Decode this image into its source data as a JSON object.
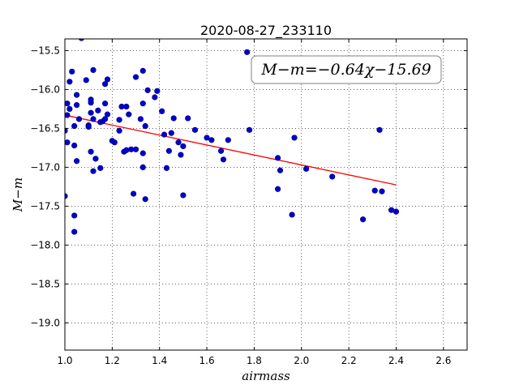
{
  "chart_data": {
    "type": "scatter",
    "title": "2020-08-27_233110",
    "xlabel": "airmass",
    "ylabel": "M−m",
    "xlim": [
      1.0,
      2.7
    ],
    "ylim": [
      -19.35,
      -15.35
    ],
    "y_inverted": false,
    "grid": true,
    "xticks": [
      "1.0",
      "1.2",
      "1.4",
      "1.6",
      "1.8",
      "2.0",
      "2.2",
      "2.4",
      "2.6"
    ],
    "xtick_values": [
      1.0,
      1.2,
      1.4,
      1.6,
      1.8,
      2.0,
      2.2,
      2.4,
      2.6
    ],
    "yticks": [
      "−15.5",
      "−16.0",
      "−16.5",
      "−17.0",
      "−17.5",
      "−18.0",
      "−18.5",
      "−19.0"
    ],
    "ytick_values": [
      -15.5,
      -16.0,
      -16.5,
      -17.0,
      -17.5,
      -18.0,
      -18.5,
      -19.0
    ],
    "annotation": "M−m=−0.64χ−15.69",
    "colors": {
      "points": "#0000cc",
      "point_edge": "#000080",
      "fit": "#ff0000"
    },
    "fit_line": {
      "slope": -0.64,
      "intercept": -15.69,
      "x_range": [
        1.02,
        2.4
      ]
    },
    "points": [
      [
        1.0,
        -16.53
      ],
      [
        1.0,
        -17.37
      ],
      [
        1.01,
        -16.33
      ],
      [
        1.01,
        -16.68
      ],
      [
        1.01,
        -16.18
      ],
      [
        1.02,
        -16.25
      ],
      [
        1.02,
        -15.9
      ],
      [
        1.03,
        -15.77
      ],
      [
        1.04,
        -16.47
      ],
      [
        1.04,
        -16.72
      ],
      [
        1.04,
        -17.62
      ],
      [
        1.04,
        -17.83
      ],
      [
        1.05,
        -16.2
      ],
      [
        1.05,
        -16.07
      ],
      [
        1.05,
        -16.92
      ],
      [
        1.06,
        -16.38
      ],
      [
        1.07,
        -15.34
      ],
      [
        1.09,
        -15.88
      ],
      [
        1.1,
        -16.46
      ],
      [
        1.1,
        -16.48
      ],
      [
        1.11,
        -16.13
      ],
      [
        1.11,
        -16.17
      ],
      [
        1.11,
        -16.8
      ],
      [
        1.11,
        -16.3
      ],
      [
        1.12,
        -16.38
      ],
      [
        1.12,
        -15.75
      ],
      [
        1.12,
        -17.05
      ],
      [
        1.13,
        -16.89
      ],
      [
        1.14,
        -16.27
      ],
      [
        1.15,
        -17.01
      ],
      [
        1.15,
        -16.42
      ],
      [
        1.16,
        -16.41
      ],
      [
        1.17,
        -15.93
      ],
      [
        1.17,
        -16.38
      ],
      [
        1.17,
        -16.18
      ],
      [
        1.18,
        -15.87
      ],
      [
        1.18,
        -16.32
      ],
      [
        1.2,
        -16.66
      ],
      [
        1.21,
        -16.68
      ],
      [
        1.23,
        -16.39
      ],
      [
        1.23,
        -16.53
      ],
      [
        1.24,
        -16.22
      ],
      [
        1.25,
        -16.8
      ],
      [
        1.26,
        -16.78
      ],
      [
        1.26,
        -16.22
      ],
      [
        1.27,
        -16.32
      ],
      [
        1.28,
        -16.77
      ],
      [
        1.29,
        -17.34
      ],
      [
        1.3,
        -15.84
      ],
      [
        1.3,
        -16.77
      ],
      [
        1.32,
        -16.38
      ],
      [
        1.33,
        -16.82
      ],
      [
        1.33,
        -16.18
      ],
      [
        1.33,
        -17.0
      ],
      [
        1.33,
        -15.76
      ],
      [
        1.34,
        -16.47
      ],
      [
        1.34,
        -17.41
      ],
      [
        1.35,
        -16.01
      ],
      [
        1.38,
        -16.1
      ],
      [
        1.39,
        -16.02
      ],
      [
        1.41,
        -16.28
      ],
      [
        1.42,
        -16.58
      ],
      [
        1.43,
        -17.01
      ],
      [
        1.44,
        -16.79
      ],
      [
        1.45,
        -16.56
      ],
      [
        1.46,
        -16.37
      ],
      [
        1.48,
        -16.68
      ],
      [
        1.49,
        -16.84
      ],
      [
        1.5,
        -17.36
      ],
      [
        1.5,
        -16.73
      ],
      [
        1.52,
        -16.37
      ],
      [
        1.55,
        -16.52
      ],
      [
        1.6,
        -16.62
      ],
      [
        1.62,
        -16.65
      ],
      [
        1.66,
        -16.79
      ],
      [
        1.67,
        -16.9
      ],
      [
        1.69,
        -16.65
      ],
      [
        1.77,
        -15.52
      ],
      [
        1.78,
        -16.52
      ],
      [
        1.9,
        -17.28
      ],
      [
        1.9,
        -16.88
      ],
      [
        1.91,
        -17.04
      ],
      [
        1.96,
        -17.61
      ],
      [
        1.97,
        -16.62
      ],
      [
        2.02,
        -17.02
      ],
      [
        2.13,
        -17.12
      ],
      [
        2.26,
        -17.67
      ],
      [
        2.31,
        -17.3
      ],
      [
        2.33,
        -16.52
      ],
      [
        2.34,
        -17.31
      ],
      [
        2.38,
        -17.55
      ],
      [
        2.4,
        -17.57
      ]
    ]
  }
}
